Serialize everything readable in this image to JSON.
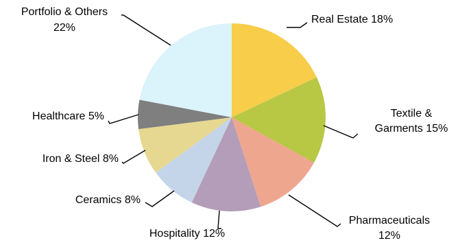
{
  "chart_data": {
    "type": "pie",
    "title": "",
    "start_angle_deg": 0,
    "direction": "clockwise",
    "slices": [
      {
        "label": "Real Estate 18%",
        "lines": [
          "Real Estate 18%"
        ],
        "value": 18,
        "color": "#f8cd4a"
      },
      {
        "label": "Textile & Garments 15%",
        "lines": [
          "Textile &",
          "Garments 15%"
        ],
        "value": 15,
        "color": "#b8c744"
      },
      {
        "label": "Pharmaceuticals 12%",
        "lines": [
          "Pharmaceuticals",
          "12%"
        ],
        "value": 12,
        "color": "#eea68e"
      },
      {
        "label": "Hospitality 12%",
        "lines": [
          "Hospitality 12%"
        ],
        "value": 12,
        "color": "#b49db8"
      },
      {
        "label": "Ceramics 8%",
        "lines": [
          "Ceramics 8%"
        ],
        "value": 8,
        "color": "#c4d5ea"
      },
      {
        "label": "Iron & Steel 8%",
        "lines": [
          "Iron & Steel 8%"
        ],
        "value": 8,
        "color": "#e6d891"
      },
      {
        "label": "Healthcare 5%",
        "lines": [
          "Healthcare 5%"
        ],
        "value": 5,
        "color": "#7f7f7f"
      },
      {
        "label": "Portfolio & Others 22%",
        "lines": [
          "Portfolio & Others",
          "22%"
        ],
        "value": 22,
        "color": "#dbf3fb"
      }
    ]
  }
}
